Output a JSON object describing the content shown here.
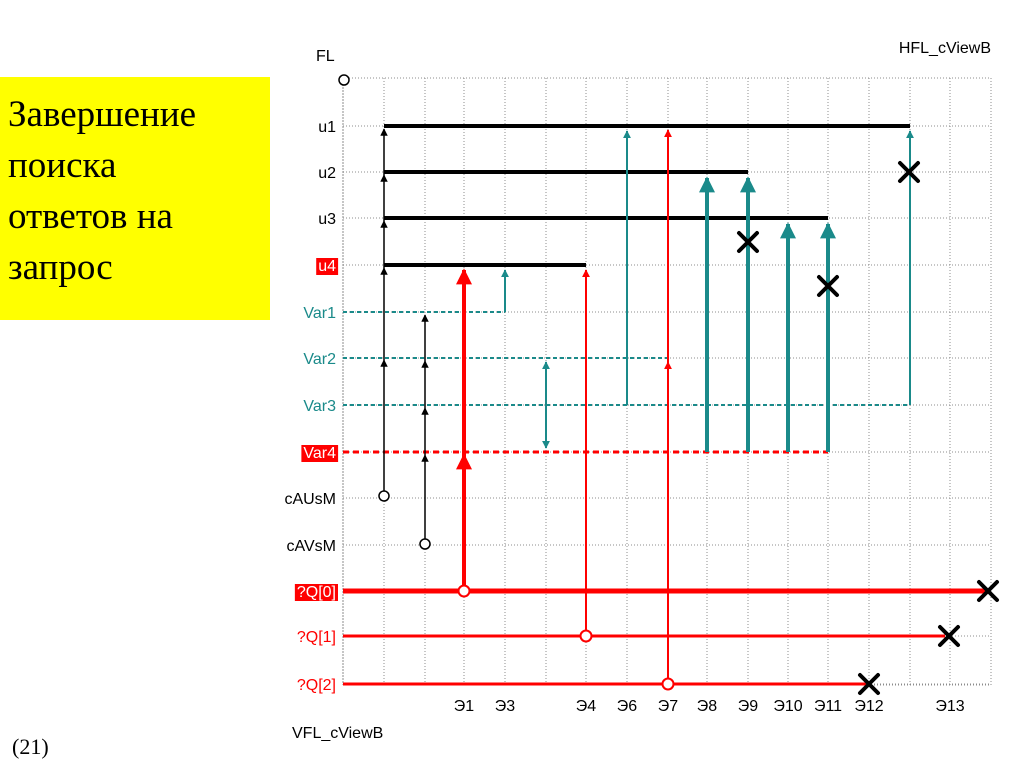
{
  "title_block": {
    "lines": [
      "Завершение",
      "поиска",
      "ответов на",
      "запрос"
    ],
    "background": "#ffff00"
  },
  "slide_number": "(21)",
  "diagram": {
    "top_left_label": "FL",
    "top_right_label": "HFL_cViewB",
    "bottom_left_label": "VFL_cViewB",
    "colors": {
      "black": "#000000",
      "teal": "#1a8a8a",
      "red": "#ff0000",
      "label_bg_red": "#ff0000"
    },
    "rows": [
      {
        "label": "u1",
        "color": "black",
        "highlighted": false
      },
      {
        "label": "u2",
        "color": "black",
        "highlighted": false
      },
      {
        "label": "u3",
        "color": "black",
        "highlighted": false
      },
      {
        "label": "u4",
        "color": "white",
        "highlighted": true
      },
      {
        "label": "Var1",
        "color": "teal",
        "highlighted": false
      },
      {
        "label": "Var2",
        "color": "teal",
        "highlighted": false
      },
      {
        "label": "Var3",
        "color": "teal",
        "highlighted": false
      },
      {
        "label": "Var4",
        "color": "white",
        "highlighted": true
      },
      {
        "label": "cAUsM",
        "color": "black",
        "highlighted": false
      },
      {
        "label": "cAVsM",
        "color": "black",
        "highlighted": false
      },
      {
        "label": "?Q[0]",
        "color": "white",
        "highlighted": true
      },
      {
        "label": "?Q[1]",
        "color": "red",
        "highlighted": false
      },
      {
        "label": "?Q[2]",
        "color": "red",
        "highlighted": false
      }
    ],
    "events": [
      {
        "label": "Э1"
      },
      {
        "label": "Э3"
      },
      {
        "label": "Э4"
      },
      {
        "label": "Э6"
      },
      {
        "label": "Э7"
      },
      {
        "label": "Э8"
      },
      {
        "label": "Э9"
      },
      {
        "label": "Э10"
      },
      {
        "label": "Э11"
      },
      {
        "label": "Э12"
      },
      {
        "label": "Э13"
      }
    ]
  }
}
